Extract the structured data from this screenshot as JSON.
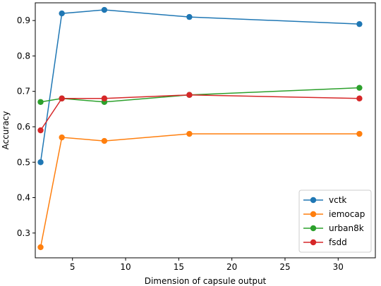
{
  "chart_data": {
    "type": "line",
    "xlabel": "Dimension of capsule output",
    "ylabel": "Accuracy",
    "xlim": [
      1.5,
      33.5
    ],
    "ylim": [
      0.23,
      0.95
    ],
    "xticks": [
      5,
      10,
      15,
      20,
      25,
      30
    ],
    "yticks": [
      0.3,
      0.4,
      0.5,
      0.6,
      0.7,
      0.8,
      0.9
    ],
    "grid": false,
    "legend_position": "lower-right",
    "x": [
      2,
      4,
      8,
      16,
      32
    ],
    "series": [
      {
        "name": "vctk",
        "color": "#1f77b4",
        "values": [
          0.5,
          0.92,
          0.93,
          0.91,
          0.89
        ]
      },
      {
        "name": "iemocap",
        "color": "#ff7f0e",
        "values": [
          0.26,
          0.57,
          0.56,
          0.58,
          0.58
        ]
      },
      {
        "name": "urban8k",
        "color": "#2ca02c",
        "values": [
          0.67,
          0.68,
          0.67,
          0.69,
          0.71
        ]
      },
      {
        "name": "fsdd",
        "color": "#d62728",
        "values": [
          0.59,
          0.68,
          0.68,
          0.69,
          0.68
        ]
      }
    ]
  }
}
